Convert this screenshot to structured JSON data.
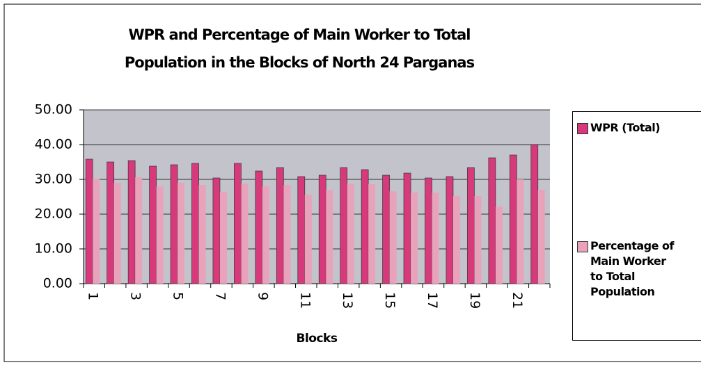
{
  "chart_data": {
    "type": "bar",
    "title": "WPR and Percentage of Main Worker to Total Population in the Blocks of North 24 Parganas",
    "x_label": "Blocks",
    "categories": [
      "1",
      null,
      "3",
      null,
      "5",
      null,
      "7",
      null,
      "9",
      null,
      "11",
      null,
      "13",
      null,
      "15",
      null,
      "17",
      null,
      "19",
      null,
      "21",
      null
    ],
    "series": [
      {
        "name": "WPR (Total)",
        "color": "#d63a7a",
        "values": [
          35.8,
          35.0,
          35.4,
          33.8,
          34.2,
          34.6,
          30.4,
          34.6,
          32.4,
          33.4,
          30.8,
          31.2,
          33.4,
          32.8,
          31.2,
          31.8,
          30.4,
          30.8,
          33.4,
          36.2,
          37.0,
          40.0
        ]
      },
      {
        "name": "Percentage of Main Worker to Total Population",
        "color": "#e8a3bb",
        "values": [
          30.2,
          29.0,
          30.6,
          28.0,
          29.0,
          28.4,
          26.4,
          28.8,
          28.0,
          28.4,
          25.6,
          27.0,
          28.8,
          28.6,
          26.6,
          26.2,
          26.2,
          25.2,
          25.2,
          22.2,
          30.0,
          27.0
        ]
      }
    ],
    "ylim": [
      0,
      50
    ],
    "yticks": [
      {
        "value": 0,
        "label": "0.00"
      },
      {
        "value": 10,
        "label": "10.00"
      },
      {
        "value": 20,
        "label": "20.00"
      },
      {
        "value": 30,
        "label": "30.00"
      },
      {
        "value": 40,
        "label": "40.00"
      },
      {
        "value": 50,
        "label": "50.00"
      }
    ],
    "grid": true,
    "legend": "right"
  }
}
